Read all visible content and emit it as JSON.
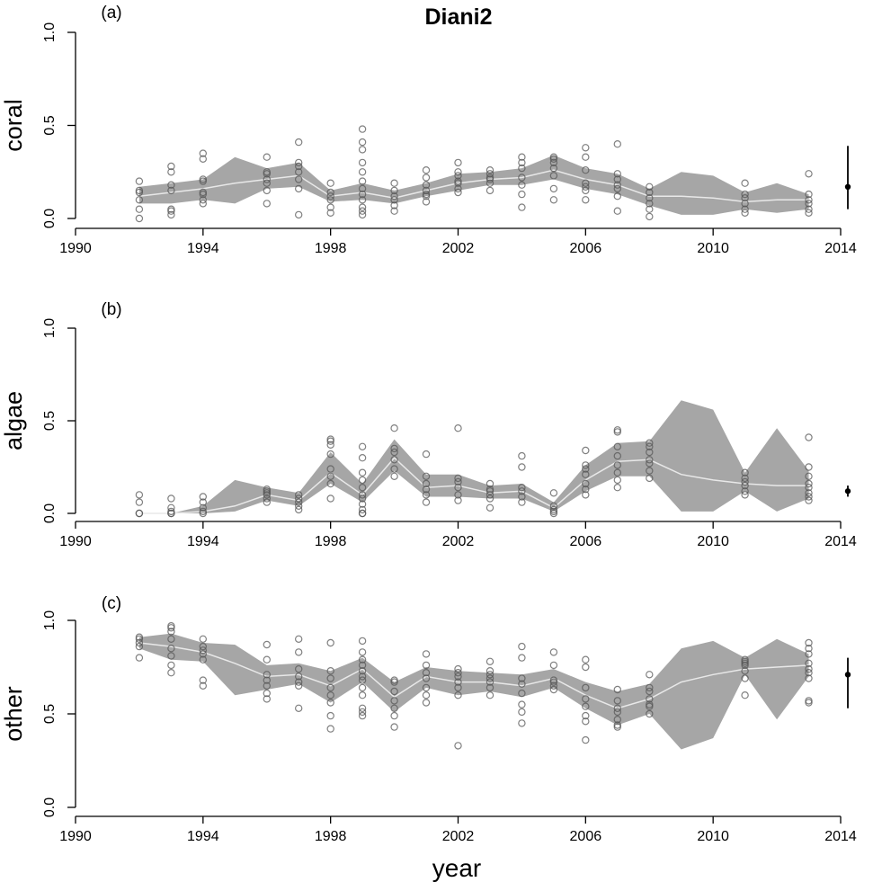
{
  "colors": {
    "band": "#a6a6a6",
    "mean_line": "#e8e8e8",
    "points": "#555555",
    "axes": "#000000"
  },
  "chart_data": {
    "type": "line",
    "title": "Diani2",
    "xlabel": "year",
    "xlim": [
      1990,
      2014
    ],
    "xticks": [
      1990,
      1994,
      1998,
      2002,
      2006,
      2010,
      2014
    ],
    "panels": [
      {
        "tag": "(a)",
        "ylabel": "coral",
        "ylim": [
          0,
          1
        ],
        "yticks": [
          0.0,
          0.5,
          1.0
        ],
        "ytick_labels": [
          "0.0",
          "0.5",
          "1.0"
        ],
        "years": [
          1992,
          1993,
          1994,
          1995,
          1996,
          1997,
          1998,
          1999,
          2000,
          2001,
          2002,
          2003,
          2004,
          2005,
          2006,
          2007,
          2008,
          2009,
          2010,
          2011,
          2012,
          2013
        ],
        "mean": [
          0.12,
          0.14,
          0.16,
          0.19,
          0.21,
          0.23,
          0.12,
          0.14,
          0.11,
          0.15,
          0.19,
          0.21,
          0.22,
          0.26,
          0.21,
          0.18,
          0.12,
          0.12,
          0.11,
          0.09,
          0.1,
          0.1
        ],
        "lower": [
          0.08,
          0.08,
          0.1,
          0.08,
          0.16,
          0.17,
          0.09,
          0.1,
          0.08,
          0.12,
          0.15,
          0.18,
          0.18,
          0.21,
          0.16,
          0.13,
          0.07,
          0.02,
          0.02,
          0.05,
          0.03,
          0.05
        ],
        "upper": [
          0.17,
          0.19,
          0.21,
          0.33,
          0.27,
          0.3,
          0.15,
          0.19,
          0.15,
          0.19,
          0.24,
          0.25,
          0.27,
          0.34,
          0.27,
          0.24,
          0.16,
          0.25,
          0.23,
          0.14,
          0.19,
          0.13
        ],
        "observations": [
          {
            "year": 1992,
            "values": [
              0.0,
              0.05,
              0.1,
              0.14,
              0.15,
              0.2
            ]
          },
          {
            "year": 1993,
            "values": [
              0.02,
              0.04,
              0.05,
              0.15,
              0.18,
              0.25,
              0.28
            ]
          },
          {
            "year": 1994,
            "values": [
              0.08,
              0.1,
              0.13,
              0.14,
              0.2,
              0.21,
              0.32,
              0.35
            ]
          },
          {
            "year": 1996,
            "values": [
              0.08,
              0.15,
              0.19,
              0.21,
              0.24,
              0.25,
              0.33
            ]
          },
          {
            "year": 1997,
            "values": [
              0.02,
              0.16,
              0.21,
              0.25,
              0.28,
              0.3,
              0.41
            ]
          },
          {
            "year": 1998,
            "values": [
              0.03,
              0.06,
              0.1,
              0.12,
              0.14,
              0.19
            ]
          },
          {
            "year": 1999,
            "values": [
              0.02,
              0.04,
              0.06,
              0.1,
              0.13,
              0.16,
              0.2,
              0.25,
              0.3,
              0.37,
              0.41,
              0.48
            ]
          },
          {
            "year": 2000,
            "values": [
              0.04,
              0.07,
              0.1,
              0.12,
              0.15,
              0.19
            ]
          },
          {
            "year": 2001,
            "values": [
              0.09,
              0.12,
              0.13,
              0.15,
              0.18,
              0.22,
              0.26
            ]
          },
          {
            "year": 2002,
            "values": [
              0.14,
              0.16,
              0.19,
              0.2,
              0.23,
              0.25,
              0.3
            ]
          },
          {
            "year": 2003,
            "values": [
              0.15,
              0.19,
              0.21,
              0.22,
              0.24,
              0.26
            ]
          },
          {
            "year": 2004,
            "values": [
              0.06,
              0.13,
              0.18,
              0.22,
              0.27,
              0.3,
              0.33
            ]
          },
          {
            "year": 2005,
            "values": [
              0.1,
              0.16,
              0.23,
              0.27,
              0.3,
              0.32,
              0.33
            ]
          },
          {
            "year": 2006,
            "values": [
              0.1,
              0.15,
              0.17,
              0.19,
              0.26,
              0.33,
              0.38
            ]
          },
          {
            "year": 2007,
            "values": [
              0.04,
              0.12,
              0.16,
              0.18,
              0.21,
              0.24,
              0.4
            ]
          },
          {
            "year": 2008,
            "values": [
              0.01,
              0.05,
              0.08,
              0.11,
              0.14,
              0.17
            ]
          },
          {
            "year": 2011,
            "values": [
              0.03,
              0.05,
              0.08,
              0.11,
              0.13,
              0.19
            ]
          },
          {
            "year": 2013,
            "values": [
              0.03,
              0.05,
              0.08,
              0.1,
              0.13,
              0.24
            ]
          }
        ],
        "estimate": {
          "mean": 0.17,
          "low": 0.05,
          "high": 0.39
        }
      },
      {
        "tag": "(b)",
        "ylabel": "algae",
        "ylim": [
          0,
          1
        ],
        "yticks": [
          0.0,
          0.5,
          1.0
        ],
        "ytick_labels": [
          "0.0",
          "0.5",
          "1.0"
        ],
        "years": [
          1992,
          1993,
          1994,
          1995,
          1996,
          1997,
          1998,
          1999,
          2000,
          2001,
          2002,
          2003,
          2004,
          2005,
          2006,
          2007,
          2008,
          2009,
          2010,
          2011,
          2012,
          2013
        ],
        "mean": [
          0.0,
          0.0,
          0.01,
          0.04,
          0.1,
          0.07,
          0.22,
          0.1,
          0.3,
          0.14,
          0.15,
          0.11,
          0.12,
          0.03,
          0.18,
          0.28,
          0.29,
          0.21,
          0.18,
          0.16,
          0.15,
          0.15
        ],
        "lower": [
          0.0,
          0.0,
          0.0,
          0.01,
          0.07,
          0.04,
          0.16,
          0.06,
          0.23,
          0.09,
          0.09,
          0.08,
          0.08,
          0.01,
          0.12,
          0.2,
          0.2,
          0.01,
          0.01,
          0.12,
          0.01,
          0.08
        ],
        "upper": [
          0.0,
          0.0,
          0.04,
          0.18,
          0.14,
          0.11,
          0.33,
          0.16,
          0.4,
          0.21,
          0.21,
          0.15,
          0.16,
          0.06,
          0.26,
          0.38,
          0.39,
          0.61,
          0.56,
          0.22,
          0.46,
          0.23
        ],
        "observations": [
          {
            "year": 1992,
            "values": [
              0.0,
              0.0,
              0.06,
              0.1
            ]
          },
          {
            "year": 1993,
            "values": [
              0.0,
              0.0,
              0.01,
              0.03,
              0.08
            ]
          },
          {
            "year": 1994,
            "values": [
              0.0,
              0.01,
              0.03,
              0.06,
              0.09
            ]
          },
          {
            "year": 1996,
            "values": [
              0.06,
              0.08,
              0.1,
              0.11,
              0.12,
              0.13
            ]
          },
          {
            "year": 1997,
            "values": [
              0.02,
              0.04,
              0.06,
              0.08,
              0.1
            ]
          },
          {
            "year": 1998,
            "values": [
              0.08,
              0.16,
              0.2,
              0.24,
              0.32,
              0.37,
              0.39,
              0.4
            ]
          },
          {
            "year": 1999,
            "values": [
              0.0,
              0.0,
              0.02,
              0.05,
              0.08,
              0.1,
              0.14,
              0.18,
              0.22,
              0.3,
              0.36
            ]
          },
          {
            "year": 2000,
            "values": [
              0.2,
              0.24,
              0.29,
              0.33,
              0.35,
              0.46
            ]
          },
          {
            "year": 2001,
            "values": [
              0.06,
              0.1,
              0.13,
              0.16,
              0.2,
              0.32
            ]
          },
          {
            "year": 2002,
            "values": [
              0.07,
              0.1,
              0.14,
              0.17,
              0.19,
              0.46
            ]
          },
          {
            "year": 2003,
            "values": [
              0.03,
              0.08,
              0.1,
              0.12,
              0.13,
              0.16
            ]
          },
          {
            "year": 2004,
            "values": [
              0.06,
              0.09,
              0.12,
              0.14,
              0.25,
              0.31
            ]
          },
          {
            "year": 2005,
            "values": [
              0.0,
              0.01,
              0.02,
              0.04,
              0.11
            ]
          },
          {
            "year": 2006,
            "values": [
              0.1,
              0.13,
              0.16,
              0.21,
              0.24,
              0.26,
              0.34
            ]
          },
          {
            "year": 2007,
            "values": [
              0.14,
              0.18,
              0.22,
              0.26,
              0.31,
              0.36,
              0.44,
              0.45
            ]
          },
          {
            "year": 2008,
            "values": [
              0.19,
              0.23,
              0.27,
              0.29,
              0.33,
              0.36,
              0.38
            ]
          },
          {
            "year": 2011,
            "values": [
              0.1,
              0.12,
              0.15,
              0.17,
              0.19,
              0.22
            ]
          },
          {
            "year": 2013,
            "values": [
              0.07,
              0.09,
              0.11,
              0.14,
              0.16,
              0.2,
              0.25,
              0.41
            ]
          }
        ],
        "estimate": {
          "mean": 0.12,
          "low": 0.09,
          "high": 0.15
        }
      },
      {
        "tag": "(c)",
        "ylabel": "other",
        "ylim": [
          0,
          1
        ],
        "yticks": [
          0.0,
          0.5,
          1.0
        ],
        "ytick_labels": [
          "0.0",
          "0.5",
          "1.0"
        ],
        "years": [
          1992,
          1993,
          1994,
          1995,
          1996,
          1997,
          1998,
          1999,
          2000,
          2001,
          2002,
          2003,
          2004,
          2005,
          2006,
          2007,
          2008,
          2009,
          2010,
          2011,
          2012,
          2013
        ],
        "mean": [
          0.88,
          0.86,
          0.83,
          0.77,
          0.7,
          0.71,
          0.65,
          0.74,
          0.59,
          0.7,
          0.67,
          0.67,
          0.65,
          0.69,
          0.6,
          0.53,
          0.58,
          0.67,
          0.71,
          0.74,
          0.75,
          0.76
        ],
        "lower": [
          0.85,
          0.79,
          0.78,
          0.6,
          0.63,
          0.66,
          0.56,
          0.67,
          0.51,
          0.64,
          0.6,
          0.62,
          0.59,
          0.64,
          0.53,
          0.44,
          0.5,
          0.31,
          0.37,
          0.71,
          0.47,
          0.7
        ],
        "upper": [
          0.91,
          0.93,
          0.88,
          0.87,
          0.76,
          0.77,
          0.73,
          0.8,
          0.67,
          0.75,
          0.73,
          0.72,
          0.71,
          0.74,
          0.67,
          0.62,
          0.66,
          0.85,
          0.89,
          0.8,
          0.9,
          0.82
        ],
        "observations": [
          {
            "year": 1992,
            "values": [
              0.8,
              0.86,
              0.88,
              0.9,
              0.91
            ]
          },
          {
            "year": 1993,
            "values": [
              0.72,
              0.76,
              0.81,
              0.85,
              0.9,
              0.94,
              0.96,
              0.97
            ]
          },
          {
            "year": 1994,
            "values": [
              0.65,
              0.68,
              0.79,
              0.82,
              0.84,
              0.86,
              0.9
            ]
          },
          {
            "year": 1996,
            "values": [
              0.58,
              0.61,
              0.65,
              0.68,
              0.71,
              0.79,
              0.87
            ]
          },
          {
            "year": 1997,
            "values": [
              0.53,
              0.65,
              0.67,
              0.7,
              0.74,
              0.83,
              0.9
            ]
          },
          {
            "year": 1998,
            "values": [
              0.42,
              0.49,
              0.56,
              0.6,
              0.64,
              0.69,
              0.73,
              0.88
            ]
          },
          {
            "year": 1999,
            "values": [
              0.49,
              0.51,
              0.53,
              0.6,
              0.64,
              0.68,
              0.7,
              0.73,
              0.76,
              0.79,
              0.83,
              0.89
            ]
          },
          {
            "year": 2000,
            "values": [
              0.43,
              0.49,
              0.53,
              0.57,
              0.62,
              0.67,
              0.68
            ]
          },
          {
            "year": 2001,
            "values": [
              0.56,
              0.6,
              0.64,
              0.69,
              0.72,
              0.76,
              0.82
            ]
          },
          {
            "year": 2002,
            "values": [
              0.33,
              0.6,
              0.64,
              0.67,
              0.7,
              0.72,
              0.74
            ]
          },
          {
            "year": 2003,
            "values": [
              0.6,
              0.64,
              0.67,
              0.69,
              0.71,
              0.73,
              0.78
            ]
          },
          {
            "year": 2004,
            "values": [
              0.45,
              0.51,
              0.55,
              0.61,
              0.66,
              0.69,
              0.8,
              0.86
            ]
          },
          {
            "year": 2005,
            "values": [
              0.63,
              0.65,
              0.67,
              0.68,
              0.76,
              0.83
            ]
          },
          {
            "year": 2006,
            "values": [
              0.36,
              0.46,
              0.49,
              0.54,
              0.58,
              0.64,
              0.75,
              0.79
            ]
          },
          {
            "year": 2007,
            "values": [
              0.43,
              0.44,
              0.47,
              0.51,
              0.53,
              0.57,
              0.63
            ]
          },
          {
            "year": 2008,
            "values": [
              0.5,
              0.54,
              0.55,
              0.58,
              0.62,
              0.64,
              0.71
            ]
          },
          {
            "year": 2011,
            "values": [
              0.6,
              0.69,
              0.73,
              0.76,
              0.77,
              0.78,
              0.79
            ]
          },
          {
            "year": 2013,
            "values": [
              0.56,
              0.57,
              0.69,
              0.72,
              0.74,
              0.77,
              0.82,
              0.85,
              0.88
            ]
          }
        ],
        "estimate": {
          "mean": 0.71,
          "low": 0.53,
          "high": 0.8
        }
      }
    ]
  }
}
